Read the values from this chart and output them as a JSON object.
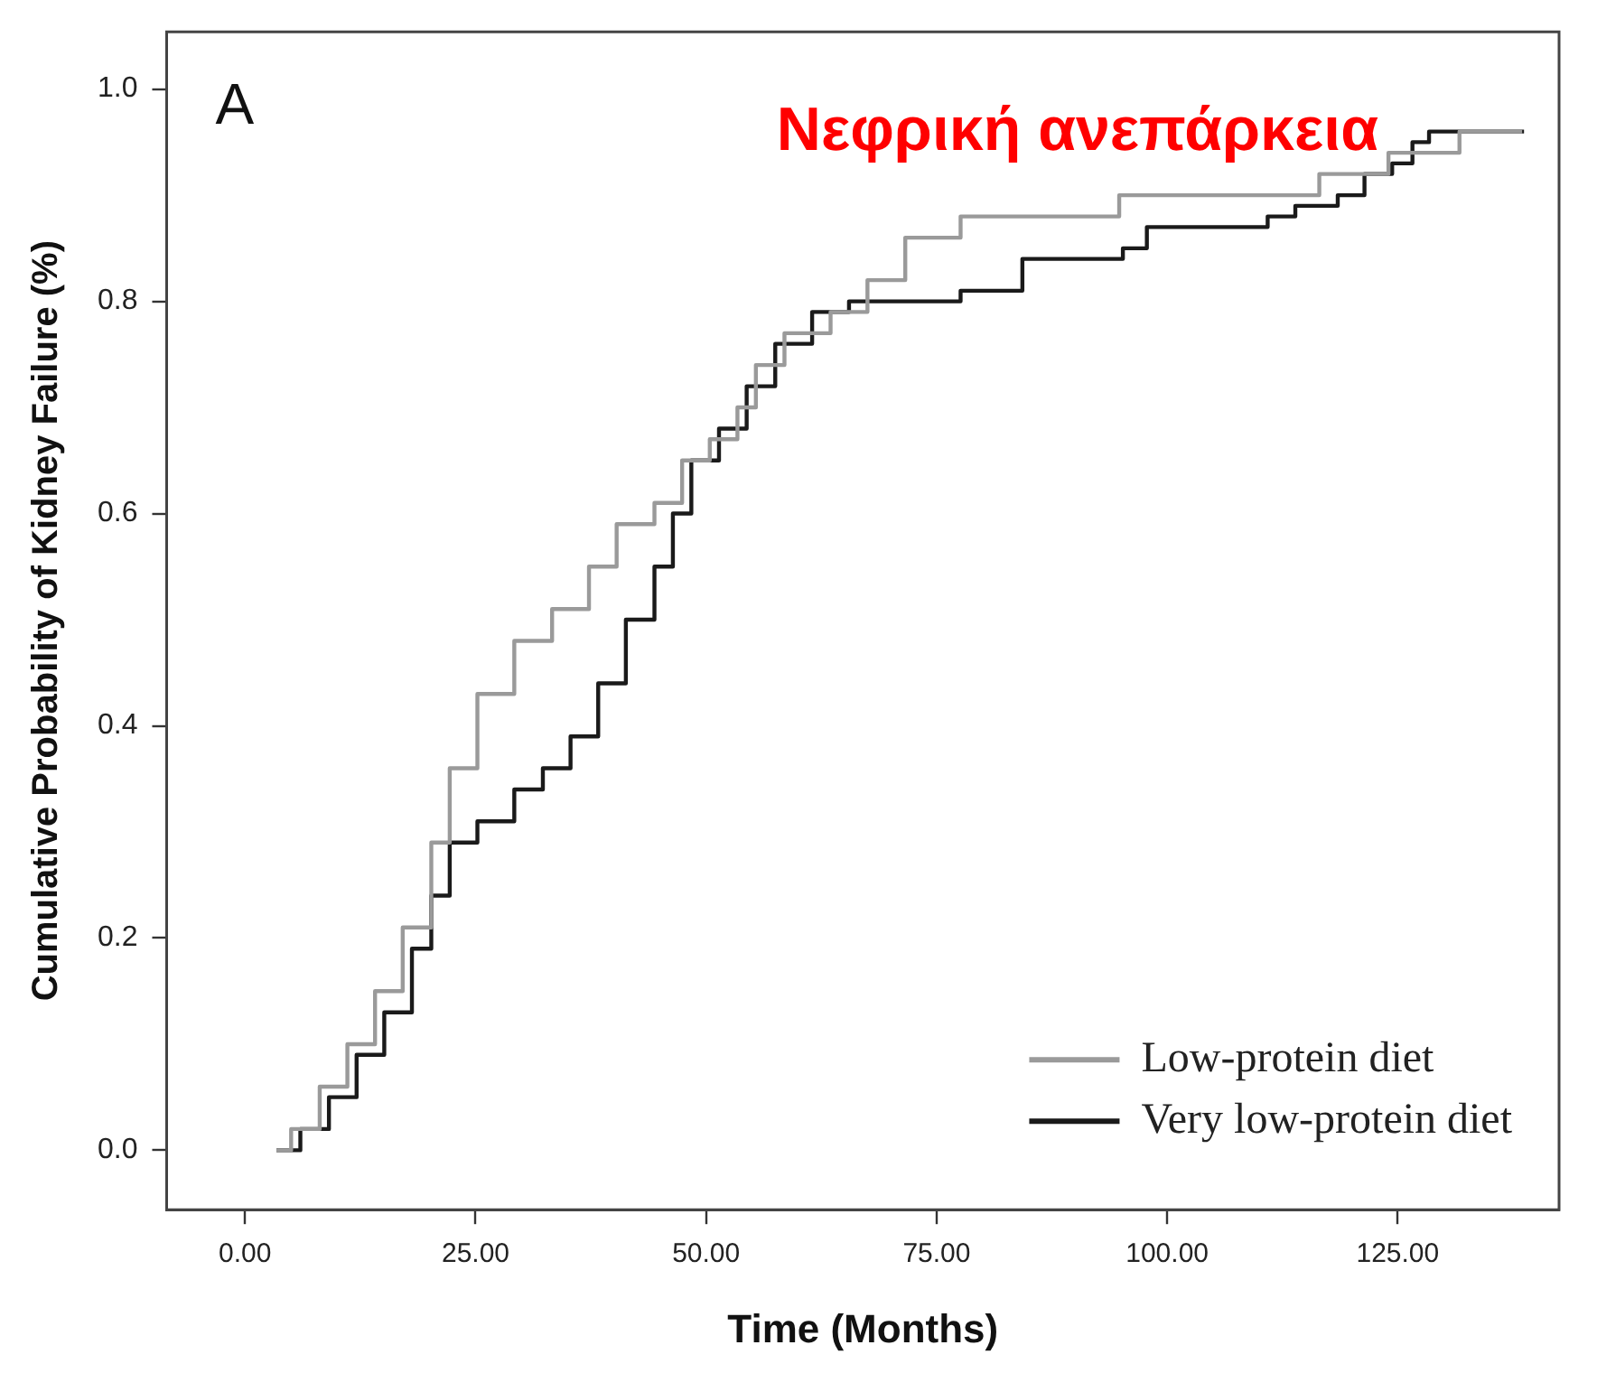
{
  "chart_data": {
    "type": "step",
    "title": "Νεφρική ανεπάρκεια",
    "xlabel": "Time (Months)",
    "ylabel": "Cumulative Probability of Kidney Failure (%)",
    "annotations": [
      "A"
    ],
    "xlim": [
      -8.5,
      142.5
    ],
    "xticks": [
      {
        "value": 0,
        "label": "0.00"
      },
      {
        "value": 25,
        "label": "25.00"
      },
      {
        "value": 50,
        "label": "50.00"
      },
      {
        "value": 75,
        "label": "75.00"
      },
      {
        "value": 100,
        "label": "100.00"
      },
      {
        "value": 125,
        "label": "125.00"
      }
    ],
    "ylim": [
      -0.056,
      1.054
    ],
    "yticks": [
      {
        "value": 0,
        "label": "0.0"
      },
      {
        "value": 0.2,
        "label": "0.2"
      },
      {
        "value": 0.4,
        "label": "0.4"
      },
      {
        "value": 0.6,
        "label": "0.6"
      },
      {
        "value": 0.8,
        "label": "0.8"
      },
      {
        "value": 1,
        "label": "1.0"
      }
    ],
    "grid": false,
    "legend": "bottom right",
    "marker": "none",
    "line_style": "solid",
    "series": [
      {
        "name": "Low-protein diet",
        "color": "#9a9a9a",
        "x": [
          3.4,
          5,
          8.1,
          11.1,
          14.1,
          17.1,
          20.2,
          22.2,
          25.2,
          29.2,
          33.3,
          37.3,
          40.3,
          44.4,
          47.4,
          50.4,
          53.4,
          55.4,
          58.5,
          63.5,
          67.5,
          71.6,
          77.6,
          94.8,
          99.4,
          116.5,
          124,
          131.7,
          138.5
        ],
        "values": [
          0,
          0.02,
          0.06,
          0.1,
          0.15,
          0.21,
          0.29,
          0.36,
          0.43,
          0.48,
          0.51,
          0.55,
          0.59,
          0.61,
          0.65,
          0.67,
          0.7,
          0.74,
          0.77,
          0.79,
          0.82,
          0.86,
          0.88,
          0.9,
          0.9,
          0.92,
          0.94,
          0.96,
          0.96
        ]
      },
      {
        "name": "Very low-protein diet",
        "color": "#1a1a1a",
        "x": [
          3.4,
          6,
          9.1,
          12.1,
          15.1,
          18.1,
          20.2,
          22.2,
          25.2,
          29.2,
          32.3,
          35.3,
          38.3,
          41.3,
          44.4,
          46.4,
          48.4,
          51.4,
          54.4,
          57.5,
          61.5,
          65.5,
          77.6,
          84.3,
          95.2,
          97.8,
          110.9,
          113.9,
          118.5,
          121.4,
          124.4,
          126.6,
          128.4,
          138.7
        ],
        "values": [
          0,
          0.02,
          0.05,
          0.09,
          0.13,
          0.19,
          0.24,
          0.29,
          0.31,
          0.34,
          0.36,
          0.39,
          0.44,
          0.5,
          0.55,
          0.6,
          0.65,
          0.68,
          0.72,
          0.76,
          0.79,
          0.8,
          0.81,
          0.84,
          0.85,
          0.87,
          0.88,
          0.89,
          0.9,
          0.92,
          0.93,
          0.95,
          0.96,
          0.96
        ]
      }
    ]
  }
}
